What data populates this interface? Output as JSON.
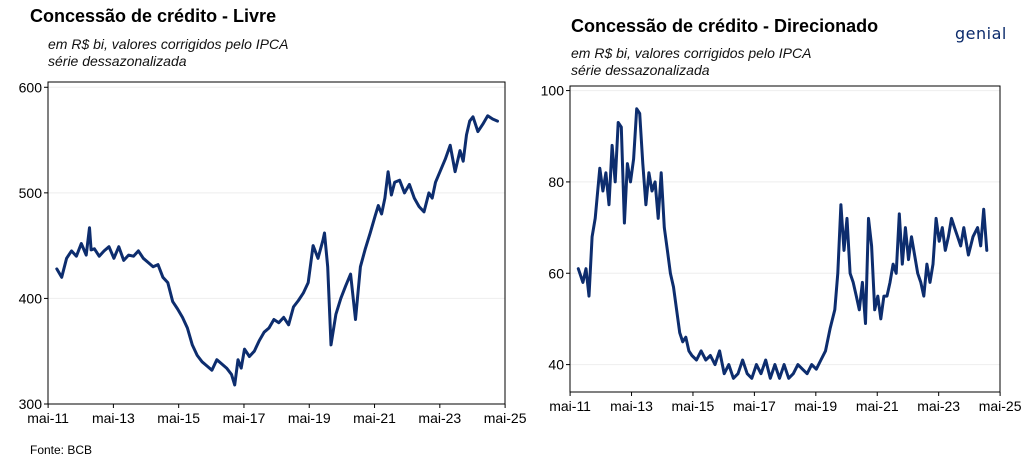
{
  "brand": {
    "logo_text": "genial",
    "color": "#0b2a6b"
  },
  "source_text": "Fonte: BCB",
  "chart_data": [
    {
      "type": "line",
      "title": "Concessão de crédito - Livre",
      "subtitle": [
        "em R$ bi, valores corrigidos pelo IPCA",
        "série dessazonalizada"
      ],
      "xlabel": "",
      "ylabel": "",
      "x_ticks": [
        "mai-11",
        "mai-13",
        "mai-15",
        "mai-17",
        "mai-19",
        "mai-21",
        "mai-23",
        "mai-25"
      ],
      "y_ticks": [
        300,
        400,
        500,
        600
      ],
      "xlim": [
        2011.33,
        2025.33
      ],
      "ylim": [
        300,
        605
      ],
      "grid": true,
      "line_color": "#0d2d6e",
      "series": [
        {
          "x": [
            2011.6,
            2011.75,
            2011.9,
            2012.05,
            2012.2,
            2012.35,
            2012.5,
            2012.6,
            2012.65,
            2012.75,
            2012.9,
            2013.05,
            2013.2,
            2013.35,
            2013.5,
            2013.65,
            2013.8,
            2013.95,
            2014.1,
            2014.25,
            2014.4,
            2014.55,
            2014.7,
            2014.85,
            2015.0,
            2015.15,
            2015.3,
            2015.45,
            2015.6,
            2015.75,
            2015.9,
            2016.05,
            2016.2,
            2016.35,
            2016.5,
            2016.65,
            2016.8,
            2016.95,
            2017.05,
            2017.15,
            2017.25,
            2017.35,
            2017.5,
            2017.65,
            2017.8,
            2017.95,
            2018.1,
            2018.25,
            2018.4,
            2018.55,
            2018.7,
            2018.85,
            2019.0,
            2019.15,
            2019.3,
            2019.45,
            2019.6,
            2019.75,
            2019.8,
            2019.9,
            2020.0,
            2020.15,
            2020.3,
            2020.45,
            2020.6,
            2020.75,
            2020.9,
            2021.05,
            2021.2,
            2021.35,
            2021.45,
            2021.55,
            2021.65,
            2021.75,
            2021.85,
            2021.95,
            2022.1,
            2022.25,
            2022.4,
            2022.55,
            2022.7,
            2022.85,
            2023.0,
            2023.1,
            2023.2,
            2023.35,
            2023.5,
            2023.65,
            2023.8,
            2023.95,
            2024.05,
            2024.15,
            2024.25,
            2024.35,
            2024.5,
            2024.65,
            2024.8,
            2024.95,
            2025.1
          ],
          "y": [
            428,
            420,
            438,
            445,
            440,
            452,
            441,
            467,
            446,
            447,
            440,
            445,
            449,
            438,
            449,
            436,
            441,
            440,
            445,
            438,
            434,
            430,
            432,
            420,
            415,
            397,
            390,
            382,
            372,
            356,
            346,
            340,
            336,
            332,
            342,
            338,
            334,
            328,
            318,
            342,
            334,
            352,
            345,
            350,
            360,
            368,
            372,
            380,
            377,
            382,
            375,
            392,
            398,
            405,
            415,
            450,
            438,
            455,
            462,
            430,
            356,
            385,
            400,
            412,
            423,
            380,
            430,
            447,
            462,
            478,
            488,
            480,
            495,
            520,
            498,
            510,
            512,
            500,
            508,
            495,
            487,
            482,
            500,
            495,
            510,
            521,
            532,
            545,
            520,
            540,
            530,
            555,
            568,
            572,
            558,
            565,
            573,
            570,
            568
          ]
        }
      ]
    },
    {
      "type": "line",
      "title": "Concessão de crédito - Direcionado",
      "subtitle": [
        "em R$ bi, valores corrigidos pelo IPCA",
        "série dessazonalizada"
      ],
      "xlabel": "",
      "ylabel": "",
      "x_ticks": [
        "mai-11",
        "mai-13",
        "mai-15",
        "mai-17",
        "mai-19",
        "mai-21",
        "mai-23",
        "mai-25"
      ],
      "y_ticks": [
        40,
        60,
        80,
        100
      ],
      "xlim": [
        2011.33,
        2025.33
      ],
      "ylim": [
        34,
        101
      ],
      "grid": true,
      "line_color": "#0d2d6e",
      "series": [
        {
          "x": [
            2011.6,
            2011.75,
            2011.85,
            2011.95,
            2012.05,
            2012.15,
            2012.3,
            2012.4,
            2012.5,
            2012.6,
            2012.7,
            2012.8,
            2012.9,
            2013.0,
            2013.1,
            2013.2,
            2013.3,
            2013.4,
            2013.5,
            2013.6,
            2013.7,
            2013.8,
            2013.9,
            2014.0,
            2014.1,
            2014.2,
            2014.3,
            2014.4,
            2014.5,
            2014.6,
            2014.7,
            2014.8,
            2014.9,
            2015.0,
            2015.1,
            2015.2,
            2015.3,
            2015.45,
            2015.6,
            2015.75,
            2015.9,
            2016.05,
            2016.2,
            2016.35,
            2016.5,
            2016.65,
            2016.8,
            2016.95,
            2017.1,
            2017.25,
            2017.4,
            2017.55,
            2017.7,
            2017.85,
            2018.0,
            2018.15,
            2018.3,
            2018.45,
            2018.6,
            2018.75,
            2018.9,
            2019.05,
            2019.2,
            2019.35,
            2019.5,
            2019.65,
            2019.8,
            2019.95,
            2020.05,
            2020.15,
            2020.25,
            2020.35,
            2020.45,
            2020.55,
            2020.65,
            2020.75,
            2020.85,
            2020.95,
            2021.05,
            2021.15,
            2021.25,
            2021.35,
            2021.45,
            2021.55,
            2021.65,
            2021.75,
            2021.85,
            2021.95,
            2022.05,
            2022.15,
            2022.25,
            2022.35,
            2022.45,
            2022.55,
            2022.65,
            2022.75,
            2022.85,
            2022.95,
            2023.05,
            2023.15,
            2023.25,
            2023.35,
            2023.45,
            2023.55,
            2023.65,
            2023.75,
            2023.85,
            2023.95,
            2024.05,
            2024.15,
            2024.3,
            2024.45,
            2024.6,
            2024.7,
            2024.8,
            2024.9
          ],
          "y": [
            61,
            58,
            61,
            55,
            68,
            72,
            83,
            78,
            82,
            75,
            88,
            80,
            93,
            92,
            71,
            84,
            80,
            85,
            96,
            95,
            84,
            75,
            82,
            78,
            80,
            72,
            82,
            70,
            65,
            60,
            57,
            52,
            47,
            45,
            46,
            43,
            42,
            41,
            43,
            41,
            42,
            40,
            43,
            38,
            40,
            37,
            38,
            41,
            38,
            37,
            40,
            38,
            41,
            37,
            40,
            37,
            40,
            37,
            38,
            40,
            39,
            38,
            40,
            39,
            41,
            43,
            48,
            52,
            60,
            75,
            65,
            72,
            60,
            58,
            55,
            52,
            58,
            49,
            72,
            66,
            52,
            55,
            50,
            55,
            55,
            58,
            62,
            60,
            73,
            62,
            70,
            63,
            68,
            64,
            60,
            58,
            55,
            62,
            58,
            62,
            72,
            67,
            70,
            65,
            68,
            72,
            70,
            68,
            66,
            70,
            64,
            68,
            70,
            66,
            74,
            65
          ]
        }
      ]
    }
  ]
}
